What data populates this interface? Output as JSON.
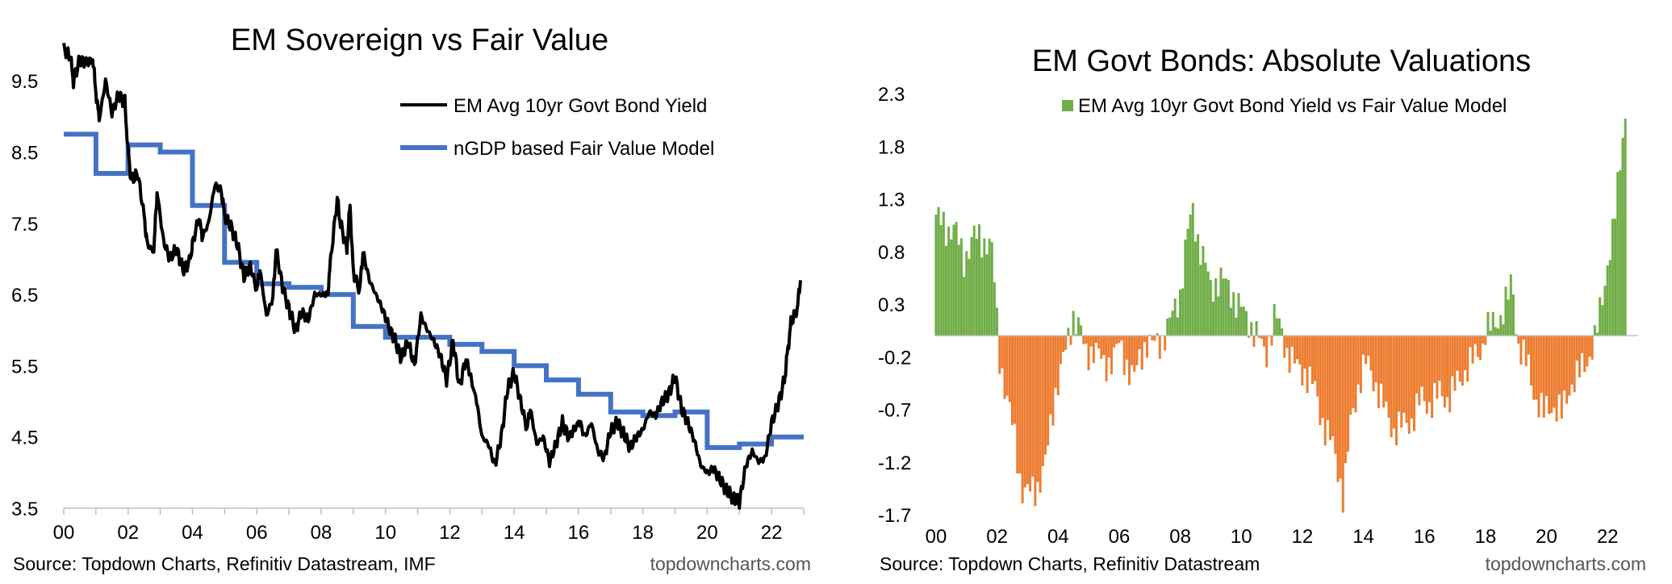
{
  "chart_data": [
    {
      "type": "line",
      "title": "EM Sovereign vs Fair Value",
      "x_tick_labels": [
        "00",
        "02",
        "04",
        "06",
        "08",
        "10",
        "12",
        "14",
        "16",
        "18",
        "20",
        "22"
      ],
      "y_tick_labels": [
        "9.5",
        "8.5",
        "7.5",
        "6.5",
        "5.5",
        "4.5",
        "3.5"
      ],
      "x_range": [
        2000,
        2023
      ],
      "ylim": [
        3.5,
        10.0
      ],
      "grid": false,
      "legend_position": "top-right",
      "series": [
        {
          "name": "EM Avg 10yr Govt Bond Yield",
          "color": "#000000",
          "points": [
            [
              2000.0,
              9.95
            ],
            [
              2000.2,
              9.85
            ],
            [
              2000.3,
              9.5
            ],
            [
              2000.5,
              9.8
            ],
            [
              2000.7,
              9.75
            ],
            [
              2000.9,
              9.8
            ],
            [
              2001.0,
              9.35
            ],
            [
              2001.1,
              8.95
            ],
            [
              2001.3,
              9.5
            ],
            [
              2001.5,
              9.05
            ],
            [
              2001.7,
              9.3
            ],
            [
              2001.9,
              9.2
            ],
            [
              2002.0,
              8.5
            ],
            [
              2002.1,
              8.1
            ],
            [
              2002.3,
              8.2
            ],
            [
              2002.5,
              7.6
            ],
            [
              2002.6,
              7.2
            ],
            [
              2002.8,
              7.1
            ],
            [
              2002.9,
              7.95
            ],
            [
              2003.1,
              7.25
            ],
            [
              2003.3,
              7.0
            ],
            [
              2003.5,
              7.15
            ],
            [
              2003.7,
              6.85
            ],
            [
              2003.9,
              6.95
            ],
            [
              2004.0,
              7.2
            ],
            [
              2004.2,
              7.6
            ],
            [
              2004.3,
              7.3
            ],
            [
              2004.5,
              7.5
            ],
            [
              2004.7,
              8.05
            ],
            [
              2004.9,
              7.95
            ],
            [
              2005.0,
              7.6
            ],
            [
              2005.2,
              7.45
            ],
            [
              2005.4,
              7.2
            ],
            [
              2005.6,
              6.75
            ],
            [
              2005.8,
              6.9
            ],
            [
              2006.0,
              6.55
            ],
            [
              2006.1,
              6.85
            ],
            [
              2006.3,
              6.2
            ],
            [
              2006.5,
              6.45
            ],
            [
              2006.6,
              7.15
            ],
            [
              2006.8,
              6.6
            ],
            [
              2007.0,
              6.3
            ],
            [
              2007.2,
              6.0
            ],
            [
              2007.4,
              6.25
            ],
            [
              2007.6,
              6.15
            ],
            [
              2007.8,
              6.5
            ],
            [
              2008.0,
              6.5
            ],
            [
              2008.2,
              6.5
            ],
            [
              2008.3,
              7.0
            ],
            [
              2008.5,
              7.85
            ],
            [
              2008.6,
              7.5
            ],
            [
              2008.8,
              7.15
            ],
            [
              2008.9,
              7.75
            ],
            [
              2009.0,
              6.8
            ],
            [
              2009.2,
              6.55
            ],
            [
              2009.3,
              7.1
            ],
            [
              2009.5,
              6.7
            ],
            [
              2009.7,
              6.5
            ],
            [
              2009.9,
              6.3
            ],
            [
              2010.1,
              6.05
            ],
            [
              2010.3,
              5.85
            ],
            [
              2010.5,
              5.6
            ],
            [
              2010.7,
              5.85
            ],
            [
              2010.9,
              5.5
            ],
            [
              2011.1,
              6.2
            ],
            [
              2011.3,
              6.0
            ],
            [
              2011.5,
              5.85
            ],
            [
              2011.7,
              5.65
            ],
            [
              2011.9,
              5.3
            ],
            [
              2012.1,
              5.85
            ],
            [
              2012.3,
              5.2
            ],
            [
              2012.5,
              5.6
            ],
            [
              2012.8,
              5.1
            ],
            [
              2013.0,
              4.5
            ],
            [
              2013.2,
              4.4
            ],
            [
              2013.4,
              4.1
            ],
            [
              2013.6,
              4.5
            ],
            [
              2013.8,
              5.2
            ],
            [
              2014.0,
              5.4
            ],
            [
              2014.2,
              5.0
            ],
            [
              2014.4,
              4.6
            ],
            [
              2014.5,
              4.9
            ],
            [
              2014.7,
              4.4
            ],
            [
              2014.9,
              4.5
            ],
            [
              2015.1,
              4.15
            ],
            [
              2015.3,
              4.4
            ],
            [
              2015.5,
              4.7
            ],
            [
              2015.7,
              4.5
            ],
            [
              2016.0,
              4.75
            ],
            [
              2016.2,
              4.5
            ],
            [
              2016.4,
              4.7
            ],
            [
              2016.6,
              4.3
            ],
            [
              2016.8,
              4.2
            ],
            [
              2017.0,
              4.6
            ],
            [
              2017.2,
              4.7
            ],
            [
              2017.4,
              4.55
            ],
            [
              2017.6,
              4.35
            ],
            [
              2017.8,
              4.5
            ],
            [
              2018.0,
              4.6
            ],
            [
              2018.2,
              4.85
            ],
            [
              2018.4,
              4.8
            ],
            [
              2018.6,
              5.0
            ],
            [
              2018.8,
              5.1
            ],
            [
              2019.0,
              5.35
            ],
            [
              2019.2,
              4.9
            ],
            [
              2019.4,
              4.7
            ],
            [
              2019.6,
              4.45
            ],
            [
              2019.8,
              4.1
            ],
            [
              2020.0,
              4.0
            ],
            [
              2020.2,
              4.05
            ],
            [
              2020.4,
              3.9
            ],
            [
              2020.6,
              3.75
            ],
            [
              2020.8,
              3.65
            ],
            [
              2021.0,
              3.58
            ],
            [
              2021.2,
              4.1
            ],
            [
              2021.4,
              4.3
            ],
            [
              2021.6,
              4.15
            ],
            [
              2021.8,
              4.2
            ],
            [
              2022.0,
              4.7
            ],
            [
              2022.2,
              4.95
            ],
            [
              2022.4,
              5.3
            ],
            [
              2022.5,
              5.7
            ],
            [
              2022.6,
              6.1
            ],
            [
              2022.8,
              6.3
            ],
            [
              2022.9,
              6.7
            ]
          ]
        },
        {
          "name": "nGDP based Fair Value Model",
          "color": "#4472c4",
          "steps": [
            [
              2000.0,
              8.75
            ],
            [
              2001.0,
              8.2
            ],
            [
              2002.0,
              8.6
            ],
            [
              2003.0,
              8.5
            ],
            [
              2004.0,
              7.75
            ],
            [
              2005.0,
              6.95
            ],
            [
              2006.0,
              6.65
            ],
            [
              2007.0,
              6.6
            ],
            [
              2008.0,
              6.5
            ],
            [
              2009.0,
              6.05
            ],
            [
              2010.0,
              5.9
            ],
            [
              2011.0,
              5.9
            ],
            [
              2012.0,
              5.8
            ],
            [
              2013.0,
              5.7
            ],
            [
              2014.0,
              5.5
            ],
            [
              2015.0,
              5.3
            ],
            [
              2016.0,
              5.1
            ],
            [
              2017.0,
              4.85
            ],
            [
              2018.0,
              4.8
            ],
            [
              2019.0,
              4.85
            ],
            [
              2020.0,
              4.35
            ],
            [
              2021.0,
              4.4
            ],
            [
              2022.0,
              4.5
            ],
            [
              2023.0,
              4.5
            ]
          ]
        }
      ],
      "source": "Source: Topdown Charts, Refinitiv Datastream, IMF",
      "brand": "topdowncharts.com"
    },
    {
      "type": "bar",
      "title": "EM Govt Bonds: Absolute Valuations",
      "x_tick_labels": [
        "00",
        "02",
        "04",
        "06",
        "08",
        "10",
        "12",
        "14",
        "16",
        "18",
        "20",
        "22"
      ],
      "y_tick_labels": [
        "2.3",
        "1.8",
        "1.3",
        "0.8",
        "0.3",
        "-0.2",
        "-0.7",
        "-1.2",
        "-1.7"
      ],
      "x_range": [
        2000,
        2023
      ],
      "ylim": [
        -1.7,
        2.3
      ],
      "grid": false,
      "legend_position": "top-right",
      "positive_color": "#70ad47",
      "negative_color": "#ed7d31",
      "series": [
        {
          "name": "EM Avg 10yr Govt Bond Yield vs Fair Value Model",
          "anchors": [
            [
              2000.0,
              1.15
            ],
            [
              2000.3,
              1.0
            ],
            [
              2000.6,
              1.05
            ],
            [
              2000.9,
              0.7
            ],
            [
              2001.2,
              0.95
            ],
            [
              2001.5,
              0.9
            ],
            [
              2001.8,
              0.9
            ],
            [
              2001.95,
              0.4
            ],
            [
              2002.05,
              -0.15
            ],
            [
              2002.3,
              -0.55
            ],
            [
              2002.6,
              -1.0
            ],
            [
              2002.8,
              -1.45
            ],
            [
              2003.0,
              -1.5
            ],
            [
              2003.3,
              -1.45
            ],
            [
              2003.6,
              -1.2
            ],
            [
              2003.9,
              -0.55
            ],
            [
              2004.1,
              -0.3
            ],
            [
              2004.3,
              -0.1
            ],
            [
              2004.5,
              0.2
            ],
            [
              2004.7,
              0.1
            ],
            [
              2004.9,
              -0.2
            ],
            [
              2005.2,
              -0.1
            ],
            [
              2005.5,
              -0.3
            ],
            [
              2005.8,
              -0.2
            ],
            [
              2006.0,
              -0.1
            ],
            [
              2006.3,
              -0.3
            ],
            [
              2006.5,
              -0.4
            ],
            [
              2006.7,
              -0.2
            ],
            [
              2006.9,
              -0.05
            ],
            [
              2007.1,
              -0.1
            ],
            [
              2007.4,
              -0.05
            ],
            [
              2007.7,
              0.15
            ],
            [
              2008.0,
              0.4
            ],
            [
              2008.2,
              0.9
            ],
            [
              2008.4,
              1.2
            ],
            [
              2008.6,
              0.9
            ],
            [
              2008.8,
              0.7
            ],
            [
              2009.0,
              0.45
            ],
            [
              2009.3,
              0.55
            ],
            [
              2009.6,
              0.45
            ],
            [
              2009.9,
              0.3
            ],
            [
              2010.2,
              0.15
            ],
            [
              2010.5,
              0.02
            ],
            [
              2010.8,
              -0.2
            ],
            [
              2011.1,
              0.2
            ],
            [
              2011.3,
              0.05
            ],
            [
              2011.5,
              -0.15
            ],
            [
              2011.8,
              -0.3
            ],
            [
              2012.1,
              -0.35
            ],
            [
              2012.4,
              -0.5
            ],
            [
              2012.7,
              -0.85
            ],
            [
              2013.0,
              -1.05
            ],
            [
              2013.2,
              -1.3
            ],
            [
              2013.35,
              -1.55
            ],
            [
              2013.6,
              -0.8
            ],
            [
              2013.9,
              -0.4
            ],
            [
              2014.1,
              -0.25
            ],
            [
              2014.4,
              -0.45
            ],
            [
              2014.7,
              -0.7
            ],
            [
              2015.0,
              -0.9
            ],
            [
              2015.3,
              -0.85
            ],
            [
              2015.6,
              -0.8
            ],
            [
              2015.9,
              -0.6
            ],
            [
              2016.2,
              -0.65
            ],
            [
              2016.5,
              -0.55
            ],
            [
              2016.8,
              -0.6
            ],
            [
              2017.1,
              -0.45
            ],
            [
              2017.4,
              -0.3
            ],
            [
              2017.7,
              -0.2
            ],
            [
              2017.9,
              -0.1
            ],
            [
              2018.0,
              0.05
            ],
            [
              2018.3,
              0.1
            ],
            [
              2018.6,
              0.25
            ],
            [
              2018.9,
              0.5
            ],
            [
              2019.0,
              0.1
            ],
            [
              2019.1,
              -0.1
            ],
            [
              2019.4,
              -0.3
            ],
            [
              2019.6,
              -0.55
            ],
            [
              2019.9,
              -0.75
            ],
            [
              2020.2,
              -0.65
            ],
            [
              2020.5,
              -0.75
            ],
            [
              2020.8,
              -0.45
            ],
            [
              2021.0,
              -0.4
            ],
            [
              2021.3,
              -0.25
            ],
            [
              2021.6,
              -0.05
            ],
            [
              2021.8,
              0.3
            ],
            [
              2022.0,
              0.7
            ],
            [
              2022.2,
              1.0
            ],
            [
              2022.4,
              1.6
            ],
            [
              2022.55,
              2.1
            ]
          ]
        }
      ],
      "source": "Source: Topdown Charts, Refinitiv Datastream",
      "brand": "topdowncharts.com"
    }
  ]
}
